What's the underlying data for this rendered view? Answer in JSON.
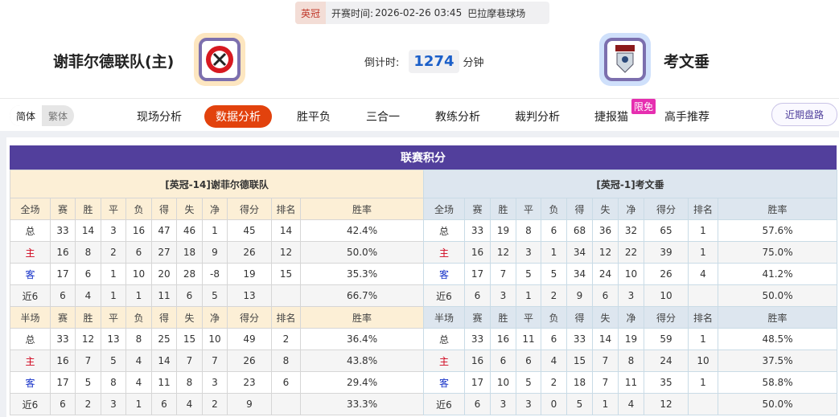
{
  "match": {
    "league": "英冠",
    "kickoff_label": "开赛时间:",
    "kickoff": "2026-02-26 03:45",
    "venue": "巴拉摩巷球场",
    "countdown_label": "倒计时:",
    "countdown": "1274",
    "countdown_unit": "分钟"
  },
  "home": {
    "name": "谢菲尔德联队(主)"
  },
  "away": {
    "name": "考文垂"
  },
  "lang": {
    "simplified": "简体",
    "traditional": "繁体"
  },
  "nav": [
    {
      "label": "现场分析"
    },
    {
      "label": "数据分析",
      "active": true
    },
    {
      "label": "胜平负"
    },
    {
      "label": "三合一"
    },
    {
      "label": "教练分析"
    },
    {
      "label": "裁判分析"
    },
    {
      "label": "捷报猫"
    },
    {
      "label": "高手推荐"
    }
  ],
  "nav_badge": "限免",
  "recent_button": "近期盘路",
  "section_title": "联赛积分",
  "columns": [
    "赛",
    "胜",
    "平",
    "负",
    "得",
    "失",
    "净",
    "得分",
    "排名",
    "胜率"
  ],
  "full_label": "全场",
  "half_label": "半场",
  "row_labels": [
    "总",
    "主",
    "客",
    "近6"
  ],
  "colors": {
    "accent": "#523f9c",
    "active_tab": "#e2420d",
    "home_label": "#d0021b",
    "away_label": "#1531c8"
  },
  "tables": [
    {
      "title": "[英冠-14]谢菲尔德联队",
      "full": [
        [
          "33",
          "14",
          "3",
          "16",
          "47",
          "46",
          "1",
          "45",
          "14",
          "42.4%"
        ],
        [
          "16",
          "8",
          "2",
          "6",
          "27",
          "18",
          "9",
          "26",
          "12",
          "50.0%"
        ],
        [
          "17",
          "6",
          "1",
          "10",
          "20",
          "28",
          "-8",
          "19",
          "15",
          "35.3%"
        ],
        [
          "6",
          "4",
          "1",
          "1",
          "11",
          "6",
          "5",
          "13",
          "",
          "66.7%"
        ]
      ],
      "half": [
        [
          "33",
          "12",
          "13",
          "8",
          "25",
          "15",
          "10",
          "49",
          "2",
          "36.4%"
        ],
        [
          "16",
          "7",
          "5",
          "4",
          "14",
          "7",
          "7",
          "26",
          "8",
          "43.8%"
        ],
        [
          "17",
          "5",
          "8",
          "4",
          "11",
          "8",
          "3",
          "23",
          "6",
          "29.4%"
        ],
        [
          "6",
          "2",
          "3",
          "1",
          "6",
          "4",
          "2",
          "9",
          "",
          "33.3%"
        ]
      ]
    },
    {
      "title": "[英冠-1]考文垂",
      "full": [
        [
          "33",
          "19",
          "8",
          "6",
          "68",
          "36",
          "32",
          "65",
          "1",
          "57.6%"
        ],
        [
          "16",
          "12",
          "3",
          "1",
          "34",
          "12",
          "22",
          "39",
          "1",
          "75.0%"
        ],
        [
          "17",
          "7",
          "5",
          "5",
          "34",
          "24",
          "10",
          "26",
          "4",
          "41.2%"
        ],
        [
          "6",
          "3",
          "1",
          "2",
          "9",
          "6",
          "3",
          "10",
          "",
          "50.0%"
        ]
      ],
      "half": [
        [
          "33",
          "16",
          "11",
          "6",
          "33",
          "14",
          "19",
          "59",
          "1",
          "48.5%"
        ],
        [
          "16",
          "6",
          "6",
          "4",
          "15",
          "7",
          "8",
          "24",
          "10",
          "37.5%"
        ],
        [
          "17",
          "10",
          "5",
          "2",
          "18",
          "7",
          "11",
          "35",
          "1",
          "58.8%"
        ],
        [
          "6",
          "3",
          "3",
          "0",
          "5",
          "1",
          "4",
          "12",
          "",
          "50.0%"
        ]
      ]
    }
  ]
}
